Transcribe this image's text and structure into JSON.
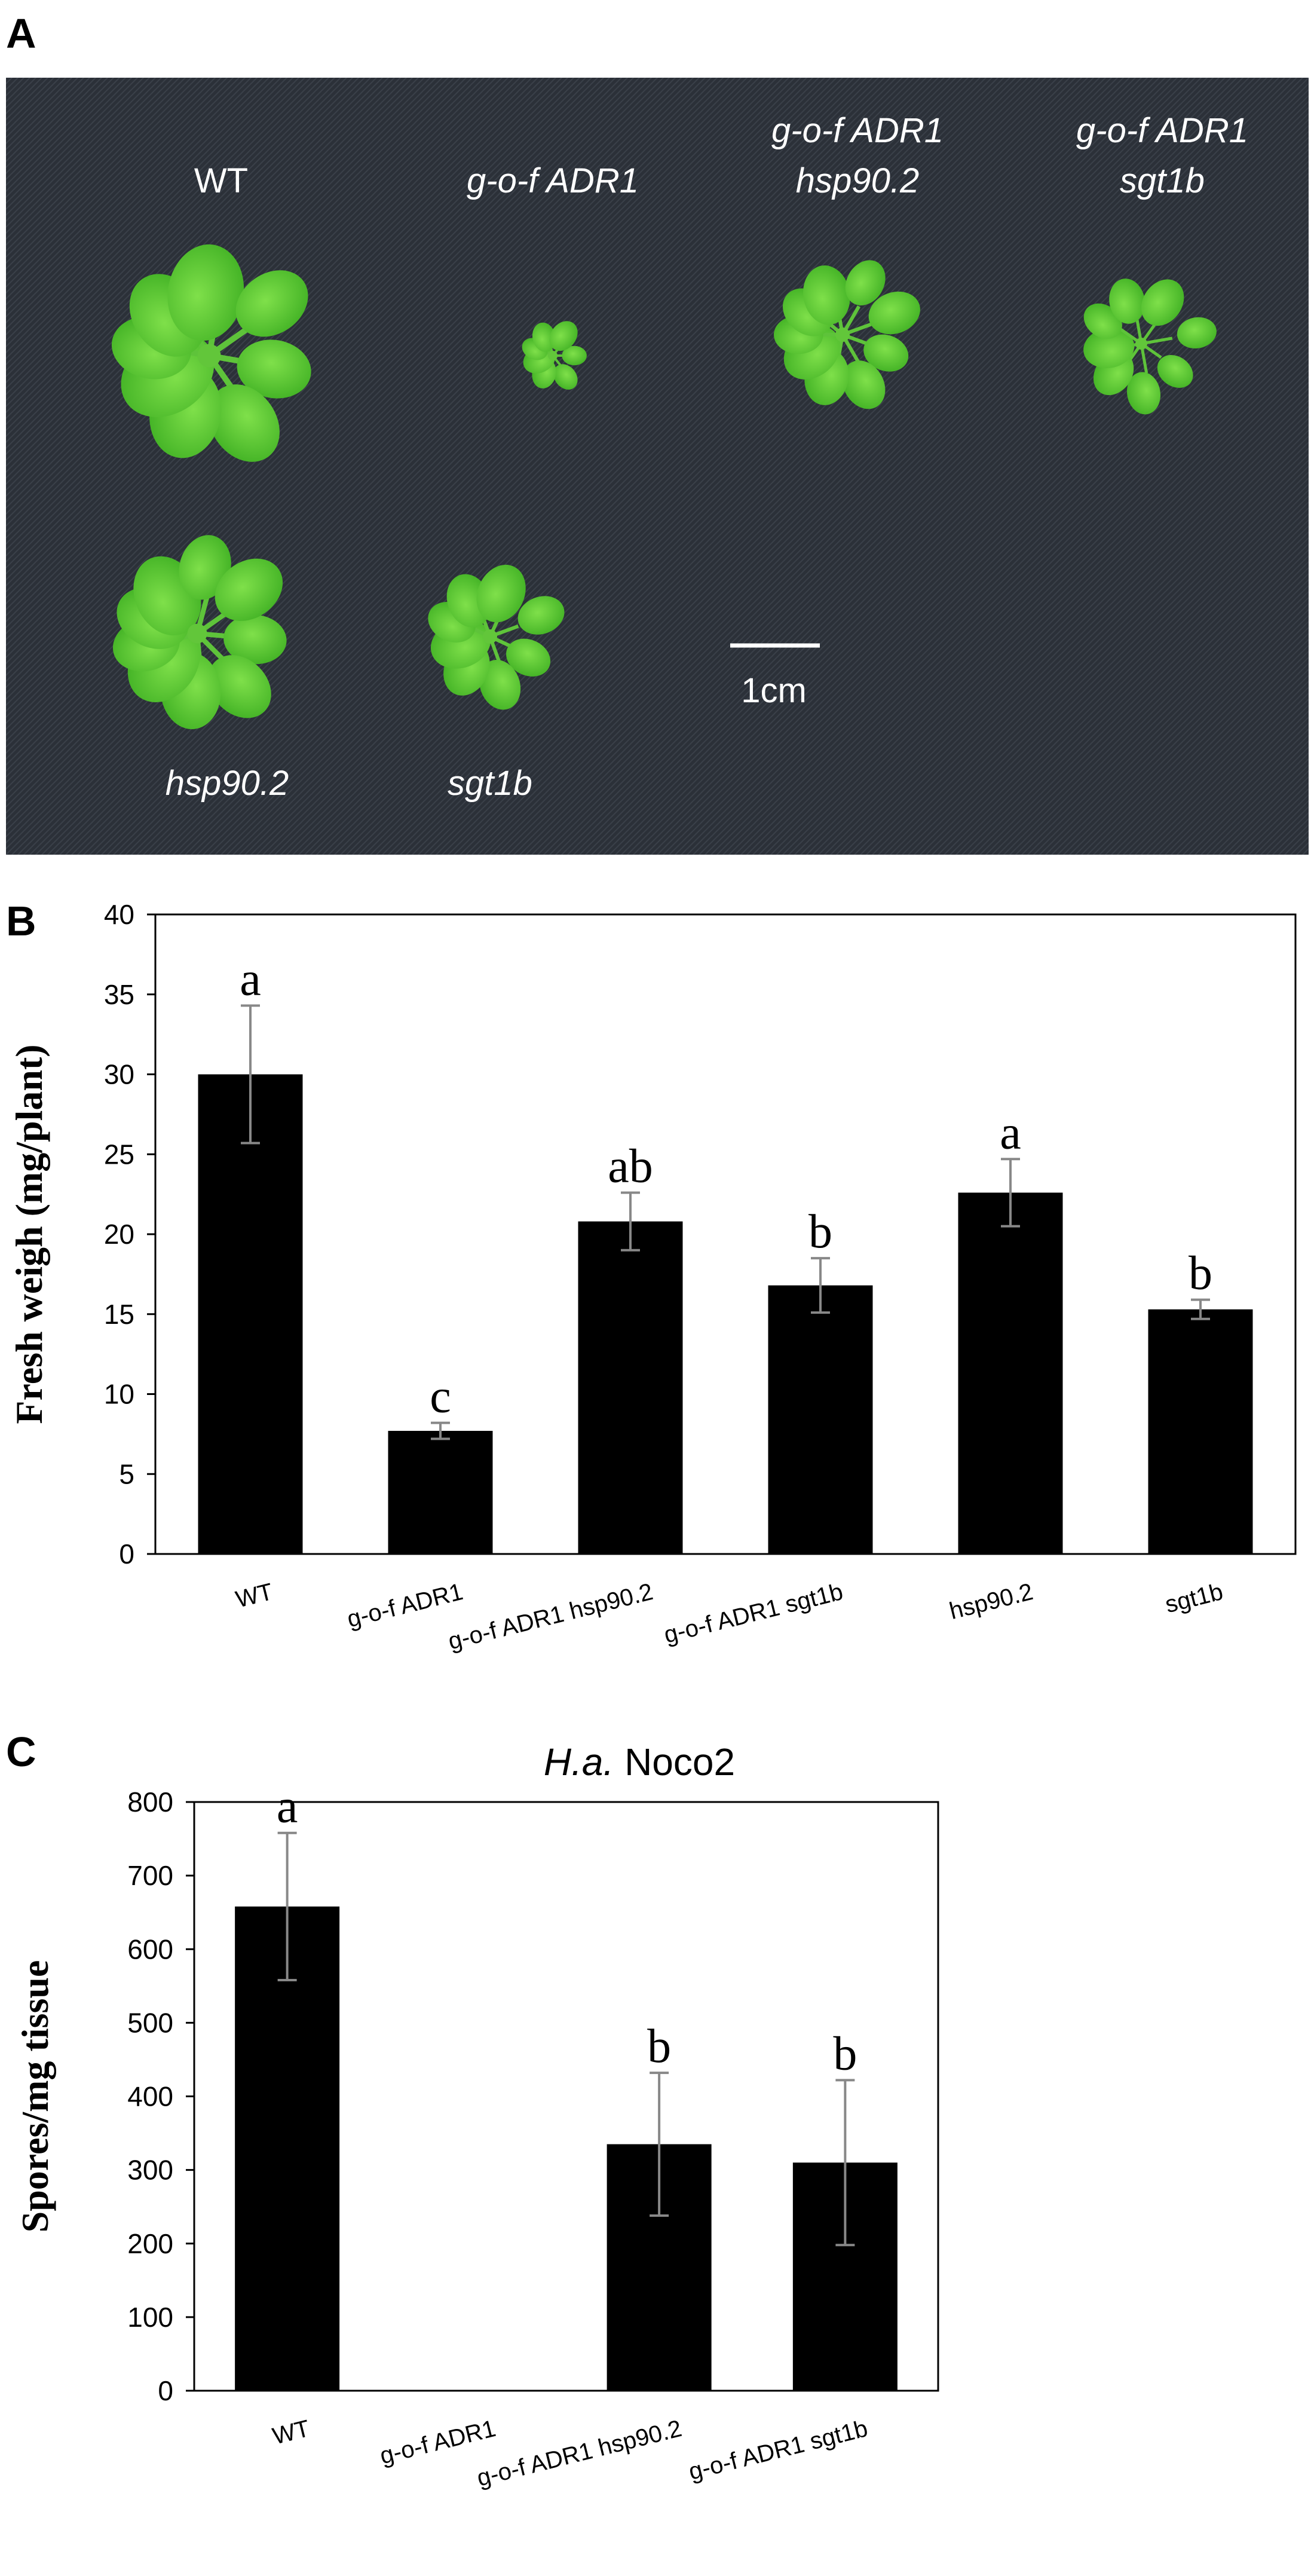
{
  "panels": {
    "a": {
      "letter": "A",
      "labels": {
        "wt": "WT",
        "gof": "g-o-f ADR1",
        "gof_hsp_1": "g-o-f ADR1",
        "gof_hsp_2": "hsp90.2",
        "gof_sgt_1": "g-o-f ADR1",
        "gof_sgt_2": "sgt1b",
        "hsp": "hsp90.2",
        "sgt": "sgt1b",
        "scale": "1cm"
      }
    },
    "b": {
      "letter": "B"
    },
    "c": {
      "letter": "C",
      "title_italic": "H.a.",
      "title_rest": " Noco2"
    }
  },
  "chart_data": [
    {
      "type": "bar",
      "ylabel": "Fresh weigh (mg/plant)",
      "ylim": [
        0,
        40
      ],
      "yticks": [
        0,
        5,
        10,
        15,
        20,
        25,
        30,
        35,
        40
      ],
      "categories": [
        "WT",
        "g-o-f ADR1",
        "g-o-f ADR1 hsp90.2",
        "g-o-f ADR1 sgt1b",
        "hsp90.2",
        "sgt1b"
      ],
      "values": [
        30.0,
        7.7,
        20.8,
        16.8,
        22.6,
        15.3
      ],
      "errors": [
        4.3,
        0.5,
        1.8,
        1.7,
        2.1,
        0.6
      ],
      "significance": [
        "a",
        "c",
        "ab",
        "b",
        "a",
        "b"
      ],
      "colors": {
        "bar": "#000000",
        "error": "#888888"
      }
    },
    {
      "type": "bar",
      "title": "H.a. Noco2",
      "ylabel": "Spores/mg tissue",
      "ylim": [
        0,
        800
      ],
      "yticks": [
        0,
        100,
        200,
        300,
        400,
        500,
        600,
        700,
        800
      ],
      "categories": [
        "WT",
        "g-o-f ADR1",
        "g-o-f ADR1 hsp90.2",
        "g-o-f ADR1 sgt1b"
      ],
      "values": [
        658,
        0,
        335,
        310
      ],
      "errors": [
        100,
        0,
        97,
        112
      ],
      "significance": [
        "a",
        "",
        "b",
        "b"
      ],
      "colors": {
        "bar": "#000000",
        "error": "#888888"
      }
    }
  ]
}
